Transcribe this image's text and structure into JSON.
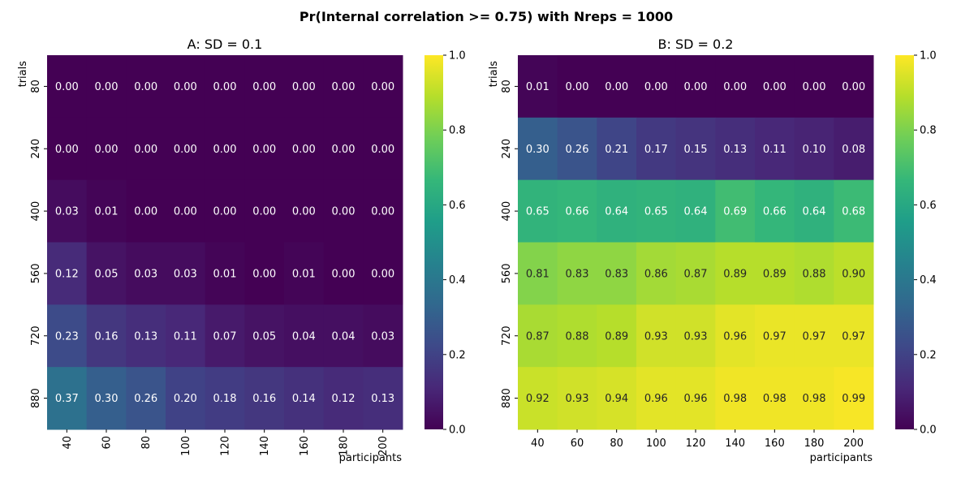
{
  "figure": {
    "suptitle": "Pr(Internal correlation >= 0.75) with Nreps = 1000"
  },
  "chart_data": [
    {
      "type": "heatmap",
      "title": "A: SD = 0.1",
      "xlabel": "participants",
      "ylabel": "trials",
      "x": [
        "40",
        "60",
        "80",
        "100",
        "120",
        "140",
        "160",
        "180",
        "200"
      ],
      "y": [
        "80",
        "240",
        "400",
        "560",
        "720",
        "880"
      ],
      "values": [
        [
          0.0,
          0.0,
          0.0,
          0.0,
          0.0,
          0.0,
          0.0,
          0.0,
          0.0
        ],
        [
          0.0,
          0.0,
          0.0,
          0.0,
          0.0,
          0.0,
          0.0,
          0.0,
          0.0
        ],
        [
          0.03,
          0.01,
          0.0,
          0.0,
          0.0,
          0.0,
          0.0,
          0.0,
          0.0
        ],
        [
          0.12,
          0.05,
          0.03,
          0.03,
          0.01,
          0.0,
          0.01,
          0.0,
          0.0
        ],
        [
          0.23,
          0.16,
          0.13,
          0.11,
          0.07,
          0.05,
          0.04,
          0.04,
          0.03
        ],
        [
          0.37,
          0.3,
          0.26,
          0.2,
          0.18,
          0.16,
          0.14,
          0.12,
          0.13
        ]
      ],
      "xtick_rotation": "vertical",
      "colorbar": {
        "colormap": "viridis",
        "range": [
          0.0,
          1.0
        ],
        "ticks": [
          "0.0",
          "0.2",
          "0.4",
          "0.6",
          "0.8",
          "1.0"
        ]
      }
    },
    {
      "type": "heatmap",
      "title": "B: SD = 0.2",
      "xlabel": "participants",
      "ylabel": "trials",
      "x": [
        "40",
        "60",
        "80",
        "100",
        "120",
        "140",
        "160",
        "180",
        "200"
      ],
      "y": [
        "80",
        "240",
        "400",
        "560",
        "720",
        "880"
      ],
      "values": [
        [
          0.01,
          0.0,
          0.0,
          0.0,
          0.0,
          0.0,
          0.0,
          0.0,
          0.0
        ],
        [
          0.3,
          0.26,
          0.21,
          0.17,
          0.15,
          0.13,
          0.11,
          0.1,
          0.08
        ],
        [
          0.65,
          0.66,
          0.64,
          0.65,
          0.64,
          0.69,
          0.66,
          0.64,
          0.68
        ],
        [
          0.81,
          0.83,
          0.83,
          0.86,
          0.87,
          0.89,
          0.89,
          0.88,
          0.9
        ],
        [
          0.87,
          0.88,
          0.89,
          0.93,
          0.93,
          0.96,
          0.97,
          0.97,
          0.97
        ],
        [
          0.92,
          0.93,
          0.94,
          0.96,
          0.96,
          0.98,
          0.98,
          0.98,
          0.99
        ]
      ],
      "xtick_rotation": "horizontal",
      "colorbar": {
        "colormap": "viridis",
        "range": [
          0.0,
          1.0
        ],
        "ticks": [
          "0.0",
          "0.2",
          "0.4",
          "0.6",
          "0.8",
          "1.0"
        ]
      }
    }
  ]
}
